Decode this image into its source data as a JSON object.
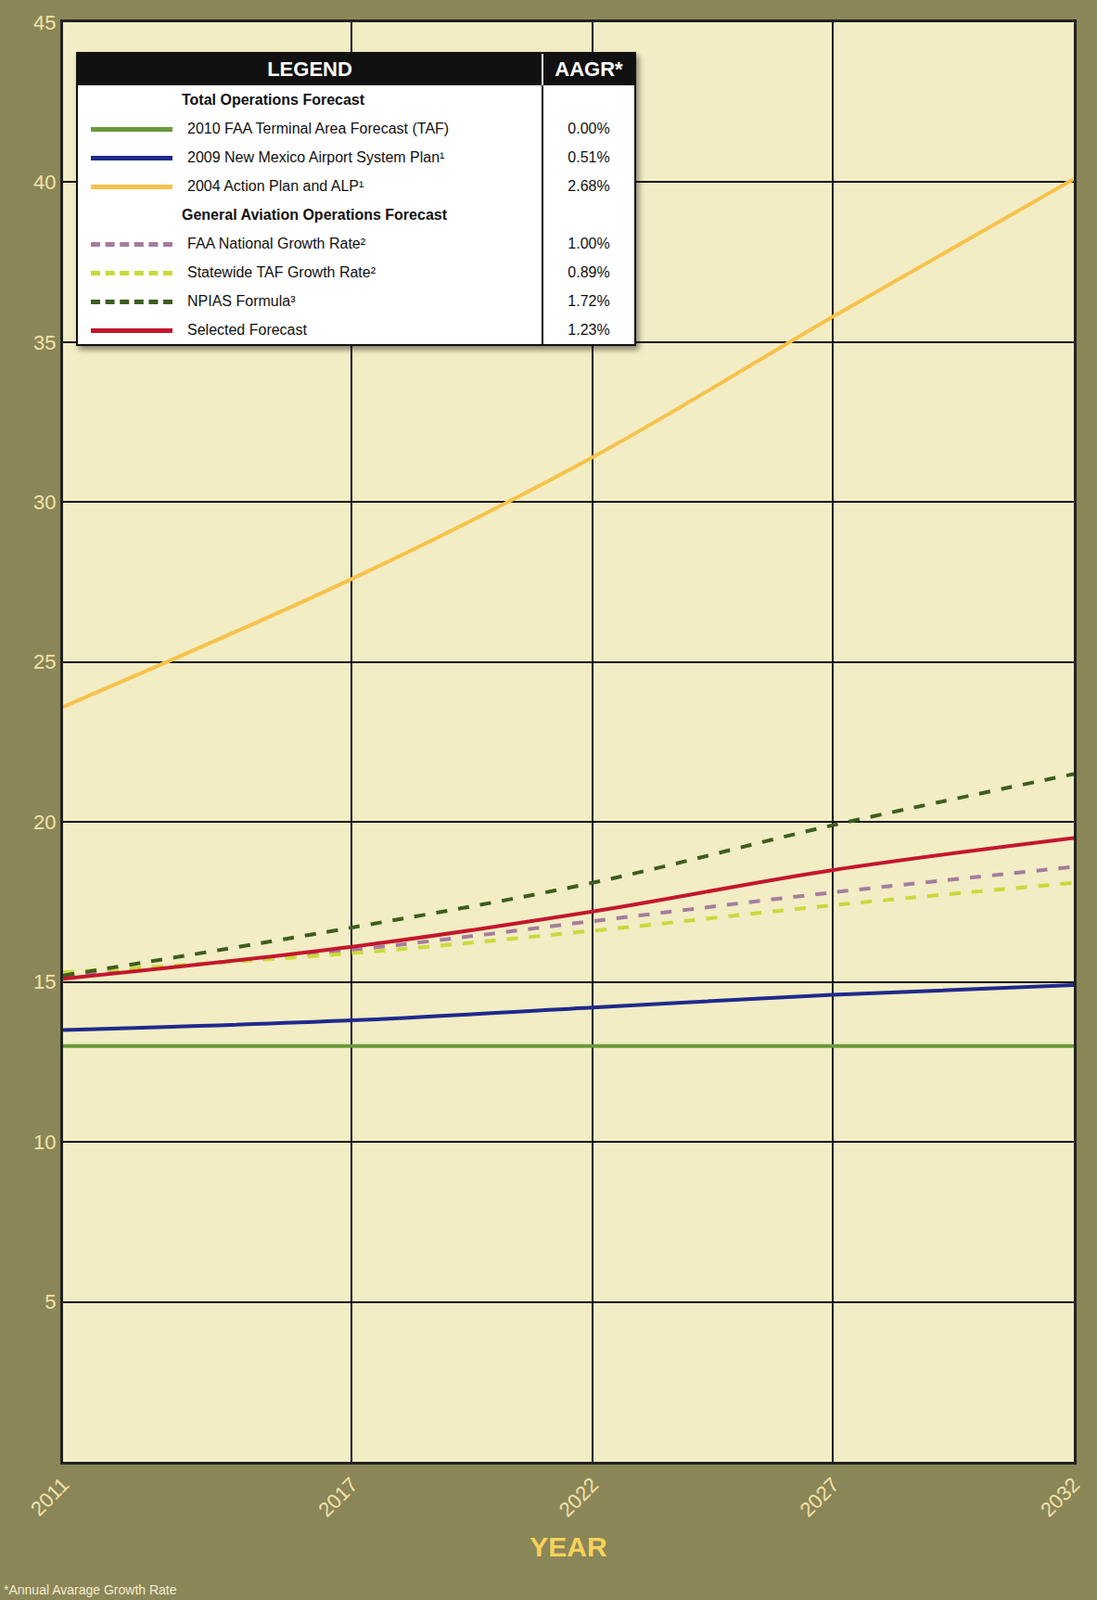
{
  "chart_data": {
    "type": "line",
    "x_title": "YEAR",
    "footnote": "*Annual Avarage Growth Rate",
    "legend_title": "LEGEND",
    "legend_value_header": "AAGR*",
    "legend": "top-left",
    "grid": true,
    "x": [
      2011,
      2017,
      2022,
      2027,
      2032
    ],
    "xlim": [
      2011,
      2032
    ],
    "xticks": [
      2011,
      2017,
      2022,
      2027,
      2032
    ],
    "ylim": [
      0,
      45
    ],
    "yticks": [
      5,
      10,
      15,
      20,
      25,
      30,
      35,
      40,
      45
    ],
    "series": [
      {
        "name": "2010 FAA Terminal Area Forecast (TAF)",
        "group": "Total Operations Forecast",
        "aagr": "0.00%",
        "color": "#6a9a3a",
        "line_style": "solid",
        "values": [
          13.0,
          13.0,
          13.0,
          13.0,
          13.0
        ]
      },
      {
        "name": "2009 New Mexico Airport System Plan¹",
        "group": "Total Operations Forecast",
        "aagr": "0.51%",
        "color": "#1f2a8c",
        "line_style": "solid",
        "values": [
          13.5,
          13.8,
          14.2,
          14.6,
          14.9
        ]
      },
      {
        "name": "2004 Action Plan and ALP¹",
        "group": "Total Operations Forecast",
        "aagr": "2.68%",
        "color": "#f7c24c",
        "line_style": "solid",
        "values": [
          23.6,
          27.6,
          31.4,
          35.8,
          40.1
        ]
      },
      {
        "name": "FAA National Growth Rate²",
        "group": "General Aviation Operations Forecast",
        "aagr": "1.00%",
        "color": "#a67d9e",
        "line_style": "dash",
        "values": [
          15.2,
          16.0,
          16.9,
          17.8,
          18.6
        ]
      },
      {
        "name": "Statewide TAF Growth Rate²",
        "group": "General Aviation Operations Forecast",
        "aagr": "0.89%",
        "color": "#c9da3c",
        "line_style": "dash",
        "values": [
          15.3,
          15.9,
          16.6,
          17.4,
          18.1
        ]
      },
      {
        "name": "NPIAS Formula³",
        "group": "General Aviation Operations Forecast",
        "aagr": "1.72%",
        "color": "#3d5e1f",
        "line_style": "dash",
        "values": [
          15.2,
          16.7,
          18.1,
          19.9,
          21.5
        ]
      },
      {
        "name": "Selected Forecast",
        "group": "General Aviation Operations Forecast",
        "aagr": "1.23%",
        "color": "#c4172c",
        "line_style": "solid",
        "values": [
          15.1,
          16.1,
          17.2,
          18.5,
          19.5
        ]
      }
    ]
  }
}
